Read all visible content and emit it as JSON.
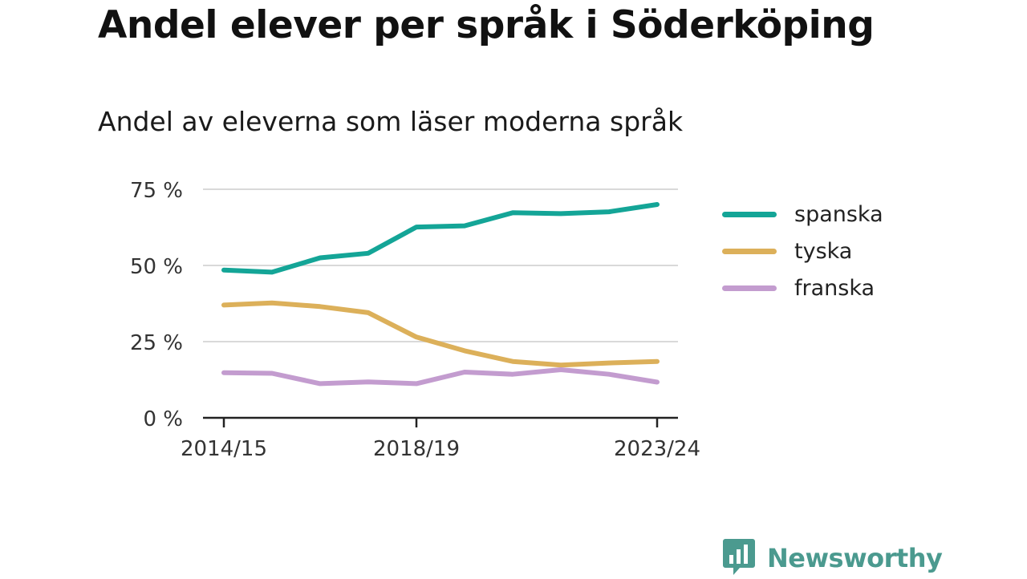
{
  "title": "Andel elever per språk i Söderköping",
  "subtitle": "Andel av eleverna som läser moderna språk",
  "brand": {
    "name": "Newsworthy",
    "icon": "bar-chart-speech-bubble-icon",
    "color": "#4b9a8f"
  },
  "chart_data": {
    "type": "line",
    "title": "Andel elever per språk i Söderköping",
    "subtitle": "Andel av eleverna som läser moderna språk",
    "x": [
      "2014/15",
      "2015/16",
      "2016/17",
      "2017/18",
      "2018/19",
      "2019/20",
      "2020/21",
      "2021/22",
      "2022/23",
      "2023/24"
    ],
    "x_tick_labels": [
      "2014/15",
      "2018/19",
      "2023/24"
    ],
    "y_ticks": [
      0,
      25,
      50,
      75
    ],
    "y_tick_labels": [
      "0 %",
      "25 %",
      "50 %",
      "75 %"
    ],
    "ylim": [
      0,
      75
    ],
    "grid": true,
    "legend_position": "right",
    "series": [
      {
        "name": "spanska",
        "color": "#14a597",
        "values": [
          48.5,
          47.8,
          52.5,
          54.0,
          62.6,
          63.0,
          67.3,
          67.0,
          67.6,
          70.0
        ]
      },
      {
        "name": "tyska",
        "color": "#dcb05a",
        "values": [
          37.0,
          37.7,
          36.5,
          34.5,
          26.5,
          22.0,
          18.5,
          17.3,
          18.0,
          18.5
        ]
      },
      {
        "name": "franska",
        "color": "#c39ccf",
        "values": [
          14.8,
          14.6,
          11.2,
          11.8,
          11.2,
          15.0,
          14.3,
          15.8,
          14.3,
          11.7
        ]
      }
    ]
  }
}
